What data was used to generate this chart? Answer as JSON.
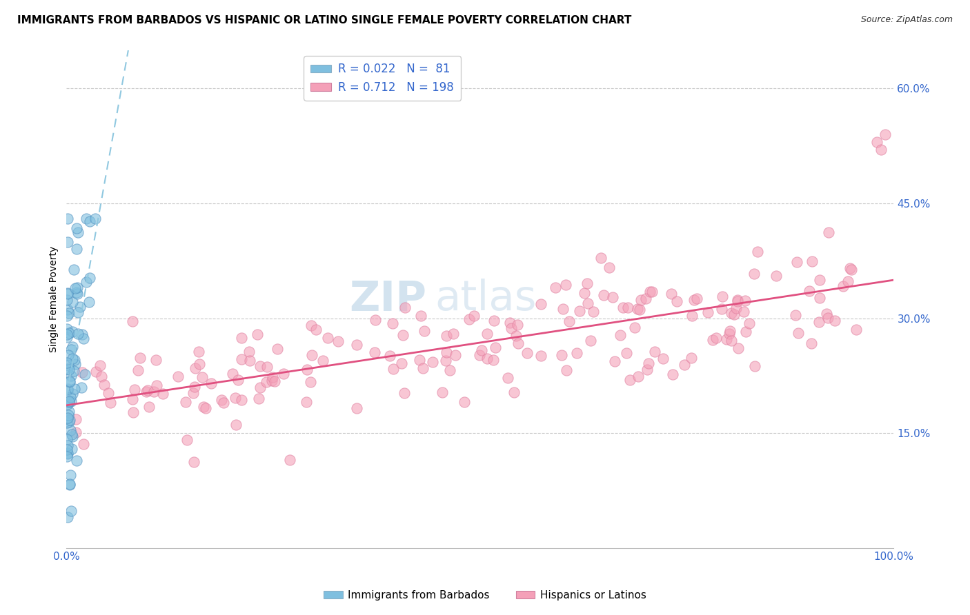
{
  "title": "IMMIGRANTS FROM BARBADOS VS HISPANIC OR LATINO SINGLE FEMALE POVERTY CORRELATION CHART",
  "source": "Source: ZipAtlas.com",
  "ylabel": "Single Female Poverty",
  "yticks": [
    "15.0%",
    "30.0%",
    "45.0%",
    "60.0%"
  ],
  "ytick_vals": [
    0.15,
    0.3,
    0.45,
    0.6
  ],
  "xlim": [
    0.0,
    1.0
  ],
  "ylim": [
    0.0,
    0.65
  ],
  "color_blue": "#7fbfdf",
  "color_pink": "#f4a0b8",
  "color_line_blue": "#a0c8e8",
  "color_line_pink": "#e05080",
  "watermark_zip": "ZIP",
  "watermark_atlas": "atlas",
  "title_fontsize": 11,
  "axis_label_color": "#3366cc",
  "background_color": "#ffffff"
}
